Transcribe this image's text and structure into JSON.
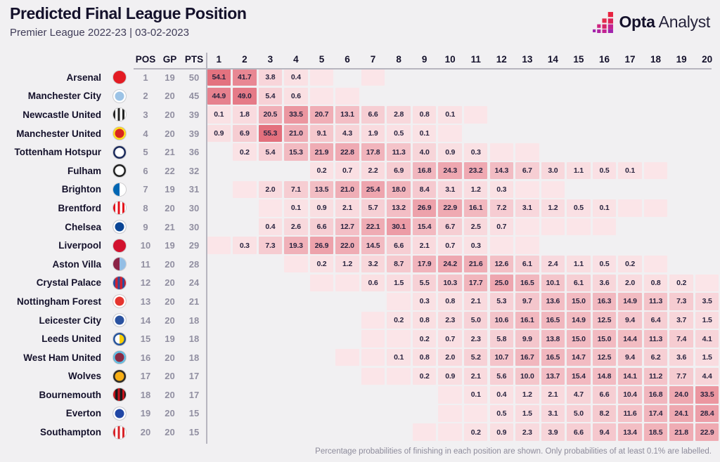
{
  "header": {
    "title": "Predicted Final League Position",
    "subtitle": "Premier League 2022-23 | 03-02-2023"
  },
  "brand": {
    "bold": "Opta",
    "light": "Analyst"
  },
  "footer": {
    "note": "Percentage probabilities of finishing in each position are shown. Only probabilities of at least 0.1% are labelled."
  },
  "chart_data": {
    "type": "heatmap",
    "title": "Predicted Final League Position",
    "subtitle": "Premier League 2022-23 | 03-02-2023",
    "meta_columns": [
      "POS",
      "GP",
      "PTS"
    ],
    "positions": [
      "1",
      "2",
      "3",
      "4",
      "5",
      "6",
      "7",
      "8",
      "9",
      "10",
      "11",
      "12",
      "13",
      "14",
      "15",
      "16",
      "17",
      "18",
      "19",
      "20"
    ],
    "unlabeled_marker": "<0.1",
    "value_range": [
      0,
      56
    ],
    "colors": {
      "heat_min": "#fdf0f2",
      "heat_max": "#e26c7a",
      "cell_text": "#29243f"
    },
    "rows": [
      {
        "name": "Arsenal",
        "pos": "1",
        "gp": "19",
        "pts": "50",
        "crest": {
          "type": "solid",
          "c1": "#e31b23",
          "ring": ""
        },
        "probs": [
          "54.1",
          "41.7",
          "3.8",
          "0.4",
          "<0.1",
          null,
          "<0.1",
          null,
          null,
          null,
          null,
          null,
          null,
          null,
          null,
          null,
          null,
          null,
          null,
          null
        ]
      },
      {
        "name": "Manchester City",
        "pos": "2",
        "gp": "20",
        "pts": "45",
        "crest": {
          "type": "solid",
          "c1": "#9cc3e6",
          "ring": "#ffffff"
        },
        "probs": [
          "44.9",
          "49.0",
          "5.4",
          "0.6",
          "<0.1",
          "<0.1",
          null,
          null,
          null,
          null,
          null,
          null,
          null,
          null,
          null,
          null,
          null,
          null,
          null,
          null
        ]
      },
      {
        "name": "Newcastle United",
        "pos": "3",
        "gp": "20",
        "pts": "39",
        "crest": {
          "type": "stripes",
          "c1": "#232323",
          "c2": "#ffffff"
        },
        "probs": [
          "0.1",
          "1.8",
          "20.5",
          "33.5",
          "20.7",
          "13.1",
          "6.6",
          "2.8",
          "0.8",
          "0.1",
          "<0.1",
          null,
          null,
          null,
          null,
          null,
          null,
          null,
          null,
          null
        ]
      },
      {
        "name": "Manchester United",
        "pos": "4",
        "gp": "20",
        "pts": "39",
        "crest": {
          "type": "solid",
          "c1": "#d9251d",
          "ring": "#fbe122"
        },
        "probs": [
          "0.9",
          "6.9",
          "55.3",
          "21.0",
          "9.1",
          "4.3",
          "1.9",
          "0.5",
          "0.1",
          "<0.1",
          null,
          null,
          null,
          null,
          null,
          null,
          null,
          null,
          null,
          null
        ]
      },
      {
        "name": "Tottenham Hotspur",
        "pos": "5",
        "gp": "21",
        "pts": "36",
        "crest": {
          "type": "solid",
          "c1": "#ffffff",
          "ring": "#1b2a5b"
        },
        "probs": [
          null,
          "0.2",
          "5.4",
          "15.3",
          "21.9",
          "22.8",
          "17.8",
          "11.3",
          "4.0",
          "0.9",
          "0.3",
          "<0.1",
          "<0.1",
          null,
          null,
          null,
          null,
          null,
          null,
          null
        ]
      },
      {
        "name": "Fulham",
        "pos": "6",
        "gp": "22",
        "pts": "32",
        "crest": {
          "type": "solid",
          "c1": "#ffffff",
          "ring": "#222222"
        },
        "probs": [
          null,
          null,
          null,
          null,
          "0.2",
          "0.7",
          "2.2",
          "6.9",
          "16.8",
          "24.3",
          "23.2",
          "14.3",
          "6.7",
          "3.0",
          "1.1",
          "0.5",
          "0.1",
          "<0.1",
          null,
          null
        ]
      },
      {
        "name": "Brighton",
        "pos": "7",
        "gp": "19",
        "pts": "31",
        "crest": {
          "type": "half",
          "c1": "#0066b3",
          "c2": "#ffffff"
        },
        "probs": [
          null,
          "<0.1",
          "2.0",
          "7.1",
          "13.5",
          "21.0",
          "25.4",
          "18.0",
          "8.4",
          "3.1",
          "1.2",
          "0.3",
          "<0.1",
          "<0.1",
          null,
          null,
          null,
          null,
          null,
          null
        ]
      },
      {
        "name": "Brentford",
        "pos": "8",
        "gp": "20",
        "pts": "30",
        "crest": {
          "type": "stripes",
          "c1": "#e3101b",
          "c2": "#ffffff"
        },
        "probs": [
          null,
          null,
          "<0.1",
          "0.1",
          "0.9",
          "2.1",
          "5.7",
          "13.2",
          "26.9",
          "22.9",
          "16.1",
          "7.2",
          "3.1",
          "1.2",
          "0.5",
          "0.1",
          "<0.1",
          "<0.1",
          null,
          null
        ]
      },
      {
        "name": "Chelsea",
        "pos": "9",
        "gp": "21",
        "pts": "30",
        "crest": {
          "type": "solid",
          "c1": "#0a4595",
          "ring": "#ffffff"
        },
        "probs": [
          null,
          null,
          "0.4",
          "2.6",
          "6.6",
          "12.7",
          "22.1",
          "30.1",
          "15.4",
          "6.7",
          "2.5",
          "0.7",
          "<0.1",
          "<0.1",
          "<0.1",
          "<0.1",
          null,
          null,
          null,
          null
        ]
      },
      {
        "name": "Liverpool",
        "pos": "10",
        "gp": "19",
        "pts": "29",
        "crest": {
          "type": "solid",
          "c1": "#d2122e",
          "ring": ""
        },
        "probs": [
          "<0.1",
          "0.3",
          "7.3",
          "19.3",
          "26.9",
          "22.0",
          "14.5",
          "6.6",
          "2.1",
          "0.7",
          "0.3",
          "<0.1",
          "<0.1",
          null,
          null,
          null,
          null,
          null,
          null,
          null
        ]
      },
      {
        "name": "Aston Villa",
        "pos": "11",
        "gp": "20",
        "pts": "28",
        "crest": {
          "type": "half",
          "c1": "#8b2346",
          "c2": "#94bee5"
        },
        "probs": [
          null,
          null,
          null,
          "<0.1",
          "0.2",
          "1.2",
          "3.2",
          "8.7",
          "17.9",
          "24.2",
          "21.6",
          "12.6",
          "6.1",
          "2.4",
          "1.1",
          "0.5",
          "0.2",
          "<0.1",
          null,
          null
        ]
      },
      {
        "name": "Crystal Palace",
        "pos": "12",
        "gp": "20",
        "pts": "24",
        "crest": {
          "type": "stripes",
          "c1": "#2a4e9c",
          "c2": "#cf2031"
        },
        "probs": [
          null,
          null,
          null,
          null,
          "<0.1",
          "<0.1",
          "0.6",
          "1.5",
          "5.5",
          "10.3",
          "17.7",
          "25.0",
          "16.5",
          "10.1",
          "6.1",
          "3.6",
          "2.0",
          "0.8",
          "0.2",
          "<0.1"
        ]
      },
      {
        "name": "Nottingham Forest",
        "pos": "13",
        "gp": "20",
        "pts": "21",
        "crest": {
          "type": "solid",
          "c1": "#e5342e",
          "ring": "#ffffff"
        },
        "probs": [
          null,
          null,
          null,
          null,
          null,
          null,
          null,
          "<0.1",
          "0.3",
          "0.8",
          "2.1",
          "5.3",
          "9.7",
          "13.6",
          "15.0",
          "16.3",
          "14.9",
          "11.3",
          "7.3",
          "3.5"
        ]
      },
      {
        "name": "Leicester City",
        "pos": "14",
        "gp": "20",
        "pts": "18",
        "crest": {
          "type": "solid",
          "c1": "#2a52a0",
          "ring": "#ffffff"
        },
        "probs": [
          null,
          null,
          null,
          null,
          null,
          null,
          "<0.1",
          "0.2",
          "0.8",
          "2.3",
          "5.0",
          "10.6",
          "16.1",
          "16.5",
          "14.9",
          "12.5",
          "9.4",
          "6.4",
          "3.7",
          "1.5"
        ]
      },
      {
        "name": "Leeds United",
        "pos": "15",
        "gp": "19",
        "pts": "18",
        "crest": {
          "type": "half",
          "c1": "#ffffff",
          "c2": "#fad000",
          "ring": "#27549c"
        },
        "probs": [
          null,
          null,
          null,
          null,
          null,
          null,
          "<0.1",
          "<0.1",
          "0.2",
          "0.7",
          "2.3",
          "5.8",
          "9.9",
          "13.8",
          "15.0",
          "15.0",
          "14.4",
          "11.3",
          "7.4",
          "4.1"
        ]
      },
      {
        "name": "West Ham United",
        "pos": "16",
        "gp": "20",
        "pts": "18",
        "crest": {
          "type": "solid",
          "c1": "#8b2a44",
          "ring": "#63c1e5"
        },
        "probs": [
          null,
          null,
          null,
          null,
          null,
          "<0.1",
          "<0.1",
          "0.1",
          "0.8",
          "2.0",
          "5.2",
          "10.7",
          "16.7",
          "16.5",
          "14.7",
          "12.5",
          "9.4",
          "6.2",
          "3.6",
          "1.5"
        ]
      },
      {
        "name": "Wolves",
        "pos": "17",
        "gp": "20",
        "pts": "17",
        "crest": {
          "type": "solid",
          "c1": "#f8af15",
          "ring": "#2b2b2b"
        },
        "probs": [
          null,
          null,
          null,
          null,
          null,
          null,
          "<0.1",
          "<0.1",
          "0.2",
          "0.9",
          "2.1",
          "5.6",
          "10.0",
          "13.7",
          "15.4",
          "14.8",
          "14.1",
          "11.2",
          "7.7",
          "4.4"
        ]
      },
      {
        "name": "Bournemouth",
        "pos": "18",
        "gp": "20",
        "pts": "17",
        "crest": {
          "type": "stripes",
          "c1": "#c5131c",
          "c2": "#1a1a1a"
        },
        "probs": [
          null,
          null,
          null,
          null,
          null,
          null,
          null,
          null,
          null,
          "<0.1",
          "0.1",
          "0.4",
          "1.2",
          "2.1",
          "4.7",
          "6.6",
          "10.4",
          "16.8",
          "24.0",
          "33.5"
        ]
      },
      {
        "name": "Everton",
        "pos": "19",
        "gp": "20",
        "pts": "15",
        "crest": {
          "type": "solid",
          "c1": "#2046a5",
          "ring": "#ffffff"
        },
        "probs": [
          null,
          null,
          null,
          null,
          null,
          null,
          null,
          null,
          null,
          "<0.1",
          "<0.1",
          "0.5",
          "1.5",
          "3.1",
          "5.0",
          "8.2",
          "11.6",
          "17.4",
          "24.1",
          "28.4"
        ]
      },
      {
        "name": "Southampton",
        "pos": "20",
        "gp": "20",
        "pts": "15",
        "crest": {
          "type": "stripes",
          "c1": "#d82227",
          "c2": "#ffffff"
        },
        "probs": [
          null,
          null,
          null,
          null,
          null,
          null,
          null,
          null,
          "<0.1",
          "<0.1",
          "0.2",
          "0.9",
          "2.3",
          "3.9",
          "6.6",
          "9.4",
          "13.4",
          "18.5",
          "21.8",
          "22.9"
        ]
      }
    ],
    "legend": "Percentage probabilities of finishing in each position are shown. Only probabilities of at least 0.1% are labelled."
  }
}
